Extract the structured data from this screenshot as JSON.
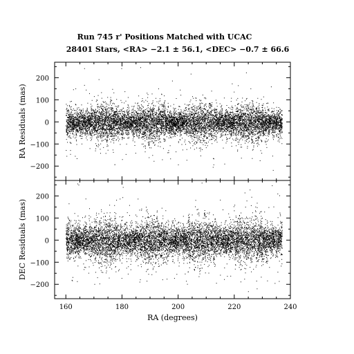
{
  "title_line1": "Run 745 r' Positions Matched with UCAC",
  "title_line2": "28401 Stars, <RA>  −2.1 ± 56.1, <DEC>  −0.7 ± 66.6",
  "chart_data": [
    {
      "type": "scatter",
      "panel": "top",
      "ylabel": "RA Residuals (mas)",
      "xlabel": "",
      "xlim": [
        156,
        240
      ],
      "ylim": [
        -265,
        270
      ],
      "xticks": [
        160,
        180,
        200,
        220,
        240
      ],
      "yticks": [
        -200,
        -100,
        0,
        100,
        200
      ],
      "ytick_labels": [
        "−200",
        "−100",
        "0",
        "100",
        "200"
      ],
      "x_data_range": [
        160,
        237
      ],
      "n_points": 28401,
      "mean": -2.1,
      "sigma": 56.1,
      "color": "#000000"
    },
    {
      "type": "scatter",
      "panel": "bottom",
      "ylabel": "DEC Residuals (mas)",
      "xlabel": "RA (degrees)",
      "xlim": [
        156,
        240
      ],
      "ylim": [
        -265,
        270
      ],
      "xticks": [
        160,
        180,
        200,
        220,
        240
      ],
      "xtick_labels": [
        "160",
        "180",
        "200",
        "220",
        "240"
      ],
      "yticks": [
        -200,
        -100,
        0,
        100,
        200
      ],
      "ytick_labels": [
        "−200",
        "−100",
        "0",
        "100",
        "200"
      ],
      "x_data_range": [
        160,
        237
      ],
      "n_points": 28401,
      "mean": -0.7,
      "sigma": 66.6,
      "color": "#000000"
    }
  ]
}
